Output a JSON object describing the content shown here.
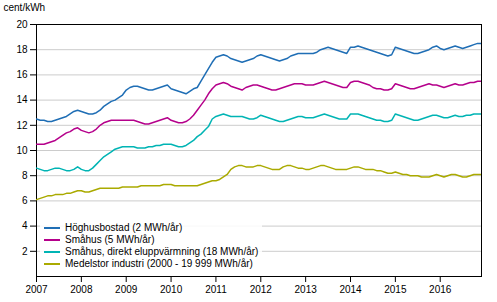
{
  "chart_data": {
    "type": "line",
    "ylabel": "cent/kWh",
    "xlim": [
      2007.0,
      2016.92
    ],
    "xticks": [
      2007,
      2008,
      2009,
      2010,
      2011,
      2012,
      2013,
      2014,
      2015,
      2016
    ],
    "ylim": [
      0,
      20
    ],
    "yticks": [
      2,
      4,
      6,
      8,
      10,
      12,
      14,
      16,
      18,
      20
    ],
    "grid": "y",
    "legend": "lower left",
    "x": [
      2007.0,
      2007.083,
      2007.167,
      2007.25,
      2007.333,
      2007.417,
      2007.5,
      2007.583,
      2007.667,
      2007.75,
      2007.833,
      2007.917,
      2008.0,
      2008.083,
      2008.167,
      2008.25,
      2008.333,
      2008.417,
      2008.5,
      2008.583,
      2008.667,
      2008.75,
      2008.833,
      2008.917,
      2009.0,
      2009.083,
      2009.167,
      2009.25,
      2009.333,
      2009.417,
      2009.5,
      2009.583,
      2009.667,
      2009.75,
      2009.833,
      2009.917,
      2010.0,
      2010.083,
      2010.167,
      2010.25,
      2010.333,
      2010.417,
      2010.5,
      2010.583,
      2010.667,
      2010.75,
      2010.833,
      2010.917,
      2011.0,
      2011.083,
      2011.167,
      2011.25,
      2011.333,
      2011.417,
      2011.5,
      2011.583,
      2011.667,
      2011.75,
      2011.833,
      2011.917,
      2012.0,
      2012.083,
      2012.167,
      2012.25,
      2012.333,
      2012.417,
      2012.5,
      2012.583,
      2012.667,
      2012.75,
      2012.833,
      2012.917,
      2013.0,
      2013.083,
      2013.167,
      2013.25,
      2013.333,
      2013.417,
      2013.5,
      2013.583,
      2013.667,
      2013.75,
      2013.833,
      2013.917,
      2014.0,
      2014.083,
      2014.167,
      2014.25,
      2014.333,
      2014.417,
      2014.5,
      2014.583,
      2014.667,
      2014.75,
      2014.833,
      2014.917,
      2015.0,
      2015.083,
      2015.167,
      2015.25,
      2015.333,
      2015.417,
      2015.5,
      2015.583,
      2015.667,
      2015.75,
      2015.833,
      2015.917,
      2016.0,
      2016.083,
      2016.167,
      2016.25,
      2016.333,
      2016.417,
      2016.5,
      2016.583,
      2016.667,
      2016.75,
      2016.833,
      2016.917
    ],
    "series": [
      {
        "name": "Höghusbostad (2 MWh/år)",
        "color": "#1f6eb5",
        "values": [
          12.5,
          12.4,
          12.4,
          12.3,
          12.3,
          12.4,
          12.5,
          12.6,
          12.7,
          12.9,
          13.1,
          13.2,
          13.1,
          13.0,
          12.9,
          12.9,
          13.0,
          13.2,
          13.5,
          13.7,
          13.9,
          14.0,
          14.2,
          14.4,
          14.8,
          15.0,
          15.1,
          15.1,
          15.0,
          14.9,
          14.8,
          14.8,
          14.9,
          15.0,
          15.1,
          15.2,
          14.9,
          14.8,
          14.7,
          14.6,
          14.5,
          14.7,
          14.9,
          15.0,
          15.5,
          16.0,
          16.5,
          17.0,
          17.4,
          17.5,
          17.6,
          17.5,
          17.3,
          17.2,
          17.1,
          17.0,
          17.1,
          17.2,
          17.3,
          17.5,
          17.6,
          17.5,
          17.4,
          17.3,
          17.2,
          17.1,
          17.2,
          17.3,
          17.5,
          17.6,
          17.7,
          17.7,
          17.7,
          17.7,
          17.7,
          17.8,
          18.0,
          18.1,
          18.2,
          18.1,
          18.0,
          17.9,
          17.8,
          17.7,
          18.2,
          18.2,
          18.3,
          18.2,
          18.1,
          18.0,
          17.9,
          17.8,
          17.7,
          17.6,
          17.5,
          17.6,
          18.2,
          18.1,
          18.0,
          17.9,
          17.8,
          17.7,
          17.7,
          17.8,
          17.9,
          18.0,
          18.2,
          18.3,
          18.1,
          18.0,
          18.1,
          18.2,
          18.3,
          18.2,
          18.1,
          18.2,
          18.3,
          18.4,
          18.5,
          18.5
        ]
      },
      {
        "name": "Småhus (5 MWh/år)",
        "color": "#b5008b",
        "values": [
          10.5,
          10.5,
          10.5,
          10.6,
          10.7,
          10.8,
          11.0,
          11.2,
          11.4,
          11.5,
          11.7,
          11.8,
          11.6,
          11.5,
          11.4,
          11.5,
          11.7,
          12.0,
          12.2,
          12.3,
          12.4,
          12.4,
          12.4,
          12.4,
          12.4,
          12.4,
          12.4,
          12.3,
          12.2,
          12.1,
          12.1,
          12.2,
          12.3,
          12.4,
          12.5,
          12.6,
          12.4,
          12.3,
          12.2,
          12.2,
          12.3,
          12.5,
          12.8,
          13.2,
          13.6,
          14.0,
          14.5,
          14.9,
          15.2,
          15.3,
          15.4,
          15.3,
          15.1,
          15.0,
          14.9,
          14.8,
          15.0,
          15.1,
          15.2,
          15.2,
          15.1,
          15.0,
          14.9,
          14.8,
          14.8,
          14.9,
          15.0,
          15.1,
          15.2,
          15.3,
          15.3,
          15.3,
          15.2,
          15.2,
          15.2,
          15.3,
          15.4,
          15.5,
          15.4,
          15.3,
          15.2,
          15.1,
          15.0,
          15.0,
          15.4,
          15.5,
          15.5,
          15.4,
          15.3,
          15.2,
          15.0,
          14.9,
          14.9,
          14.8,
          14.8,
          14.9,
          15.3,
          15.2,
          15.1,
          15.0,
          14.9,
          14.9,
          15.0,
          15.1,
          15.2,
          15.3,
          15.2,
          15.2,
          15.1,
          15.0,
          15.1,
          15.2,
          15.3,
          15.2,
          15.2,
          15.3,
          15.4,
          15.4,
          15.5,
          15.5
        ]
      },
      {
        "name": "Småhus, direkt eluppvärmning (18 MWh/år)",
        "color": "#00b4b4",
        "values": [
          8.6,
          8.5,
          8.4,
          8.4,
          8.5,
          8.6,
          8.6,
          8.5,
          8.4,
          8.4,
          8.5,
          8.7,
          8.5,
          8.4,
          8.4,
          8.6,
          8.9,
          9.2,
          9.5,
          9.7,
          9.9,
          10.1,
          10.2,
          10.3,
          10.3,
          10.3,
          10.3,
          10.2,
          10.2,
          10.2,
          10.3,
          10.3,
          10.4,
          10.4,
          10.5,
          10.5,
          10.5,
          10.4,
          10.3,
          10.3,
          10.4,
          10.6,
          10.8,
          11.1,
          11.3,
          11.6,
          11.9,
          12.5,
          12.7,
          12.8,
          12.9,
          12.8,
          12.7,
          12.7,
          12.7,
          12.7,
          12.6,
          12.5,
          12.5,
          12.6,
          12.8,
          12.7,
          12.6,
          12.5,
          12.4,
          12.3,
          12.3,
          12.4,
          12.5,
          12.6,
          12.7,
          12.7,
          12.6,
          12.6,
          12.6,
          12.7,
          12.8,
          12.9,
          12.8,
          12.7,
          12.6,
          12.5,
          12.5,
          12.5,
          12.9,
          12.9,
          12.9,
          12.8,
          12.7,
          12.6,
          12.5,
          12.4,
          12.4,
          12.3,
          12.3,
          12.4,
          12.9,
          12.8,
          12.7,
          12.6,
          12.5,
          12.4,
          12.4,
          12.5,
          12.6,
          12.7,
          12.8,
          12.8,
          12.7,
          12.6,
          12.6,
          12.7,
          12.8,
          12.7,
          12.7,
          12.8,
          12.8,
          12.9,
          12.9,
          12.9
        ]
      },
      {
        "name": "Medelstor industri (2000 - 19 999 MWh/år)",
        "color": "#aaaa00",
        "values": [
          6.1,
          6.2,
          6.3,
          6.4,
          6.4,
          6.5,
          6.5,
          6.5,
          6.6,
          6.6,
          6.7,
          6.8,
          6.8,
          6.7,
          6.7,
          6.8,
          6.9,
          7.0,
          7.0,
          7.0,
          7.0,
          7.0,
          7.0,
          7.1,
          7.1,
          7.1,
          7.1,
          7.1,
          7.2,
          7.2,
          7.2,
          7.2,
          7.2,
          7.2,
          7.3,
          7.3,
          7.3,
          7.2,
          7.2,
          7.2,
          7.2,
          7.2,
          7.2,
          7.2,
          7.3,
          7.4,
          7.5,
          7.6,
          7.6,
          7.7,
          7.9,
          8.1,
          8.5,
          8.7,
          8.8,
          8.8,
          8.7,
          8.7,
          8.7,
          8.8,
          8.8,
          8.7,
          8.6,
          8.5,
          8.5,
          8.5,
          8.7,
          8.8,
          8.8,
          8.7,
          8.6,
          8.6,
          8.5,
          8.5,
          8.6,
          8.7,
          8.8,
          8.8,
          8.7,
          8.6,
          8.5,
          8.5,
          8.5,
          8.5,
          8.6,
          8.7,
          8.7,
          8.6,
          8.5,
          8.5,
          8.5,
          8.4,
          8.4,
          8.3,
          8.2,
          8.2,
          8.3,
          8.2,
          8.1,
          8.1,
          8.0,
          8.0,
          8.0,
          7.9,
          7.9,
          7.9,
          8.0,
          8.1,
          8.0,
          7.9,
          8.0,
          8.1,
          8.1,
          8.0,
          7.9,
          7.9,
          8.0,
          8.1,
          8.1,
          8.1
        ]
      }
    ]
  }
}
